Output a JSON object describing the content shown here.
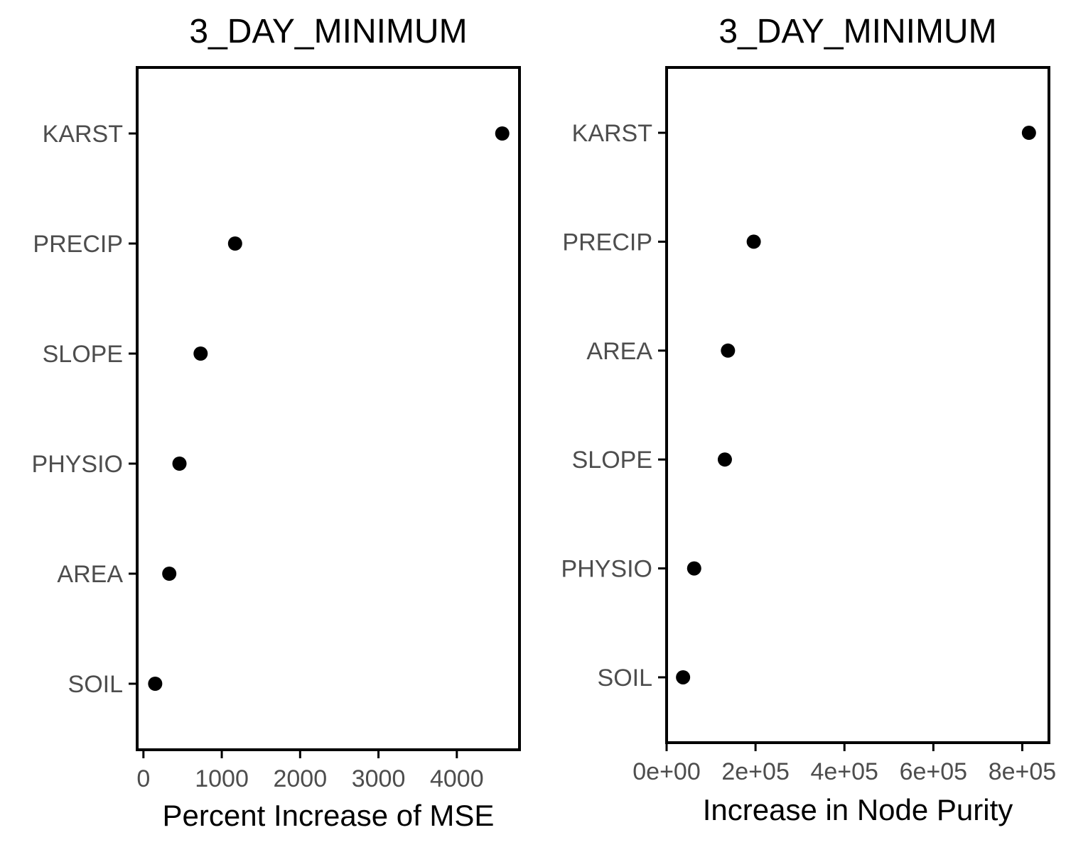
{
  "chart_data": [
    {
      "type": "scatter",
      "title": "3_DAY_MINIMUM",
      "xlabel": "Percent Increase of MSE",
      "ylabel": "",
      "xlim": [
        -80,
        4800
      ],
      "categories": [
        "KARST",
        "PRECIP",
        "SLOPE",
        "PHYSIO",
        "AREA",
        "SOIL"
      ],
      "values": [
        4580,
        1170,
        730,
        460,
        330,
        150
      ],
      "x_ticks": [
        0,
        1000,
        2000,
        3000,
        4000
      ],
      "x_tick_labels": [
        "0",
        "1000",
        "2000",
        "3000",
        "4000"
      ],
      "grid": false,
      "legend": "none",
      "point_color": "#000000"
    },
    {
      "type": "scatter",
      "title": "3_DAY_MINIMUM",
      "xlabel": "Increase in Node Purity",
      "ylabel": "",
      "xlim": [
        0,
        860000
      ],
      "categories": [
        "KARST",
        "PRECIP",
        "AREA",
        "SLOPE",
        "PHYSIO",
        "SOIL"
      ],
      "values": [
        815000,
        196000,
        138000,
        131000,
        62000,
        37000
      ],
      "x_ticks": [
        0,
        200000,
        400000,
        600000,
        800000
      ],
      "x_tick_labels": [
        "0e+00",
        "2e+05",
        "4e+05",
        "6e+05",
        "8e+05"
      ],
      "grid": false,
      "legend": "none",
      "point_color": "#000000"
    }
  ]
}
